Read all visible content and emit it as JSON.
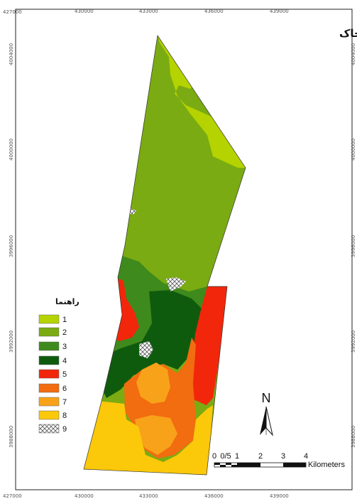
{
  "title": "نقشه واحد خاک",
  "coords": {
    "top_x": [
      "427000",
      "430000",
      "433000",
      "436000",
      "439000"
    ],
    "bottom_x": [
      "427000",
      "430000",
      "433000",
      "436000",
      "439000"
    ],
    "y": [
      "4004000",
      "4000000",
      "3996000",
      "3992000",
      "3988000"
    ]
  },
  "legend": {
    "title": "راهنما",
    "items": [
      {
        "label": "1",
        "color": "#b5d300"
      },
      {
        "label": "2",
        "color": "#7aab12"
      },
      {
        "label": "3",
        "color": "#3f8a1c"
      },
      {
        "label": "4",
        "color": "#0f5b0e"
      },
      {
        "label": "5",
        "color": "#f2260a"
      },
      {
        "label": "6",
        "color": "#f26c10"
      },
      {
        "label": "7",
        "color": "#f8a21a"
      },
      {
        "label": "8",
        "color": "#fbc80a"
      },
      {
        "label": "9",
        "color": "hatched"
      }
    ]
  },
  "scale_bar": {
    "labels": [
      "0",
      "0/5",
      "1",
      "2",
      "3",
      "4"
    ],
    "unit": "Kilometers"
  },
  "north": {
    "label": "N"
  }
}
